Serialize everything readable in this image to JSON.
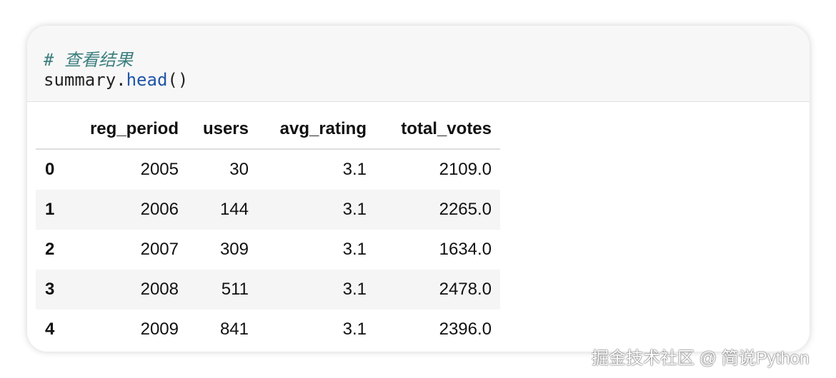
{
  "code_cell": {
    "comment": "# 查看结果",
    "tokens": [
      "summary",
      ".",
      "head",
      "()"
    ]
  },
  "table": {
    "columns": [
      "",
      "reg_period",
      "users",
      "avg_rating",
      "total_votes"
    ],
    "rows": [
      [
        "0",
        "2005",
        "30",
        "3.1",
        "2109.0"
      ],
      [
        "1",
        "2006",
        "144",
        "3.1",
        "2265.0"
      ],
      [
        "2",
        "2007",
        "309",
        "3.1",
        "1634.0"
      ],
      [
        "3",
        "2008",
        "511",
        "3.1",
        "2478.0"
      ],
      [
        "4",
        "2009",
        "841",
        "3.1",
        "2396.0"
      ]
    ]
  },
  "watermark": "掘金技术社区 @ 简说Python"
}
